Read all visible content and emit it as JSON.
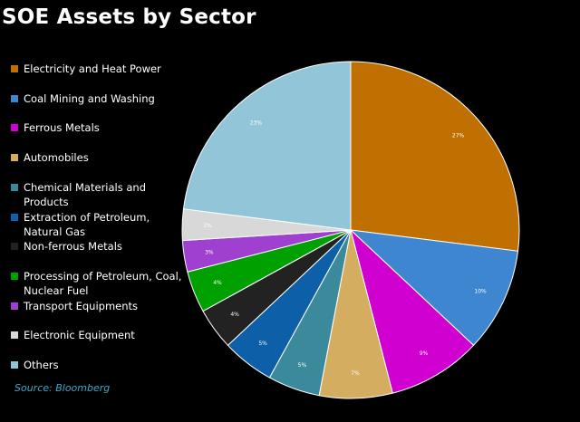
{
  "title": "SOE Assets by Sector",
  "source": "Source: Bloomberg",
  "chart_data": {
    "type": "pie",
    "title": "SOE Assets by Sector",
    "start_angle_deg": 0,
    "direction": "clockwise",
    "slices": [
      {
        "label": "Electricity and Heat Power",
        "value": 27,
        "display": "27%",
        "color": "#c07000"
      },
      {
        "label": "Coal Mining and Washing",
        "value": 10,
        "display": "10%",
        "color": "#3f86d0"
      },
      {
        "label": "Ferrous Metals",
        "value": 9,
        "display": "9%",
        "color": "#d000d0"
      },
      {
        "label": "Automobiles",
        "value": 7,
        "display": "7%",
        "color": "#d4ad60"
      },
      {
        "label": "Chemical Materials and Products",
        "value": 5,
        "display": "5%",
        "color": "#3a8a9c"
      },
      {
        "label": "Extraction of Petroleum, Natural Gas",
        "value": 5,
        "display": "5%",
        "color": "#0d5fa8"
      },
      {
        "label": "Non-ferrous Metals",
        "value": 4,
        "display": "4%",
        "color": "#222222"
      },
      {
        "label": "Processing of Petroleum, Coal, Nuclear Fuel",
        "value": 4,
        "display": "4%",
        "color": "#00a000"
      },
      {
        "label": "Transport Equipments",
        "value": 3,
        "display": "3%",
        "color": "#a040d0"
      },
      {
        "label": "Electronic Equipment",
        "value": 3,
        "display": "3%",
        "color": "#d8d8d8"
      },
      {
        "label": "Others",
        "value": 23,
        "display": "23%",
        "color": "#93c5d8"
      }
    ]
  },
  "legend": [
    {
      "label": "Electricity and Heat Power",
      "color": "#c07000"
    },
    {
      "label": "Coal Mining and Washing",
      "color": "#3f86d0"
    },
    {
      "label": "Ferrous Metals",
      "color": "#d000d0"
    },
    {
      "label": "Automobiles",
      "color": "#d4ad60"
    },
    {
      "label": "Chemical Materials and Products",
      "color": "#3a8a9c"
    },
    {
      "label": "Extraction of Petroleum, Natural Gas",
      "color": "#0d5fa8"
    },
    {
      "label": "Non-ferrous Metals",
      "color": "#222222"
    },
    {
      "label": "Processing of Petroleum, Coal, Nuclear Fuel",
      "color": "#00a000"
    },
    {
      "label": "Transport Equipments",
      "color": "#a040d0"
    },
    {
      "label": "Electronic Equipment",
      "color": "#d8d8d8"
    },
    {
      "label": "Others",
      "color": "#93c5d8"
    }
  ]
}
